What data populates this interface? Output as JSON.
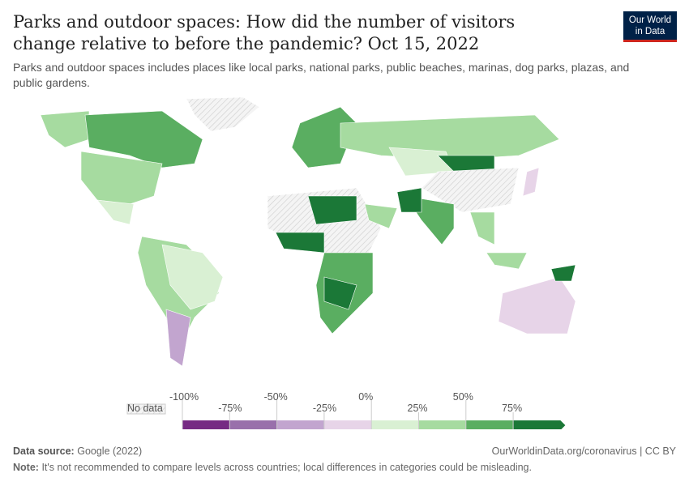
{
  "title": "Parks and outdoor spaces: How did the number of visitors change relative to before the pandemic? Oct 15, 2022",
  "subtitle": "Parks and outdoor spaces includes places like local parks, national parks, public beaches, marinas, dog parks, plazas, and public gardens.",
  "logo": {
    "line1": "Our World",
    "line2": "in Data"
  },
  "legend": {
    "no_data": "No data",
    "ticks_upper": [
      "-100%",
      "-50%",
      "0%",
      "50%"
    ],
    "ticks_lower": [
      "-75%",
      "-25%",
      "25%",
      "75%"
    ],
    "bins": [
      "#762a83",
      "#9970ab",
      "#c2a5cf",
      "#e7d4e8",
      "#d9f0d3",
      "#a6dba0",
      "#5aae61",
      "#1b7837"
    ],
    "no_data_color": "#eeeeee"
  },
  "footer": {
    "source_label": "Data source:",
    "source": "Google (2022)",
    "url": "OurWorldinData.org/coronavirus | CC BY",
    "note_label": "Note:",
    "note": "It's not recommended to compare levels across countries; local differences in categories could be misleading."
  }
}
